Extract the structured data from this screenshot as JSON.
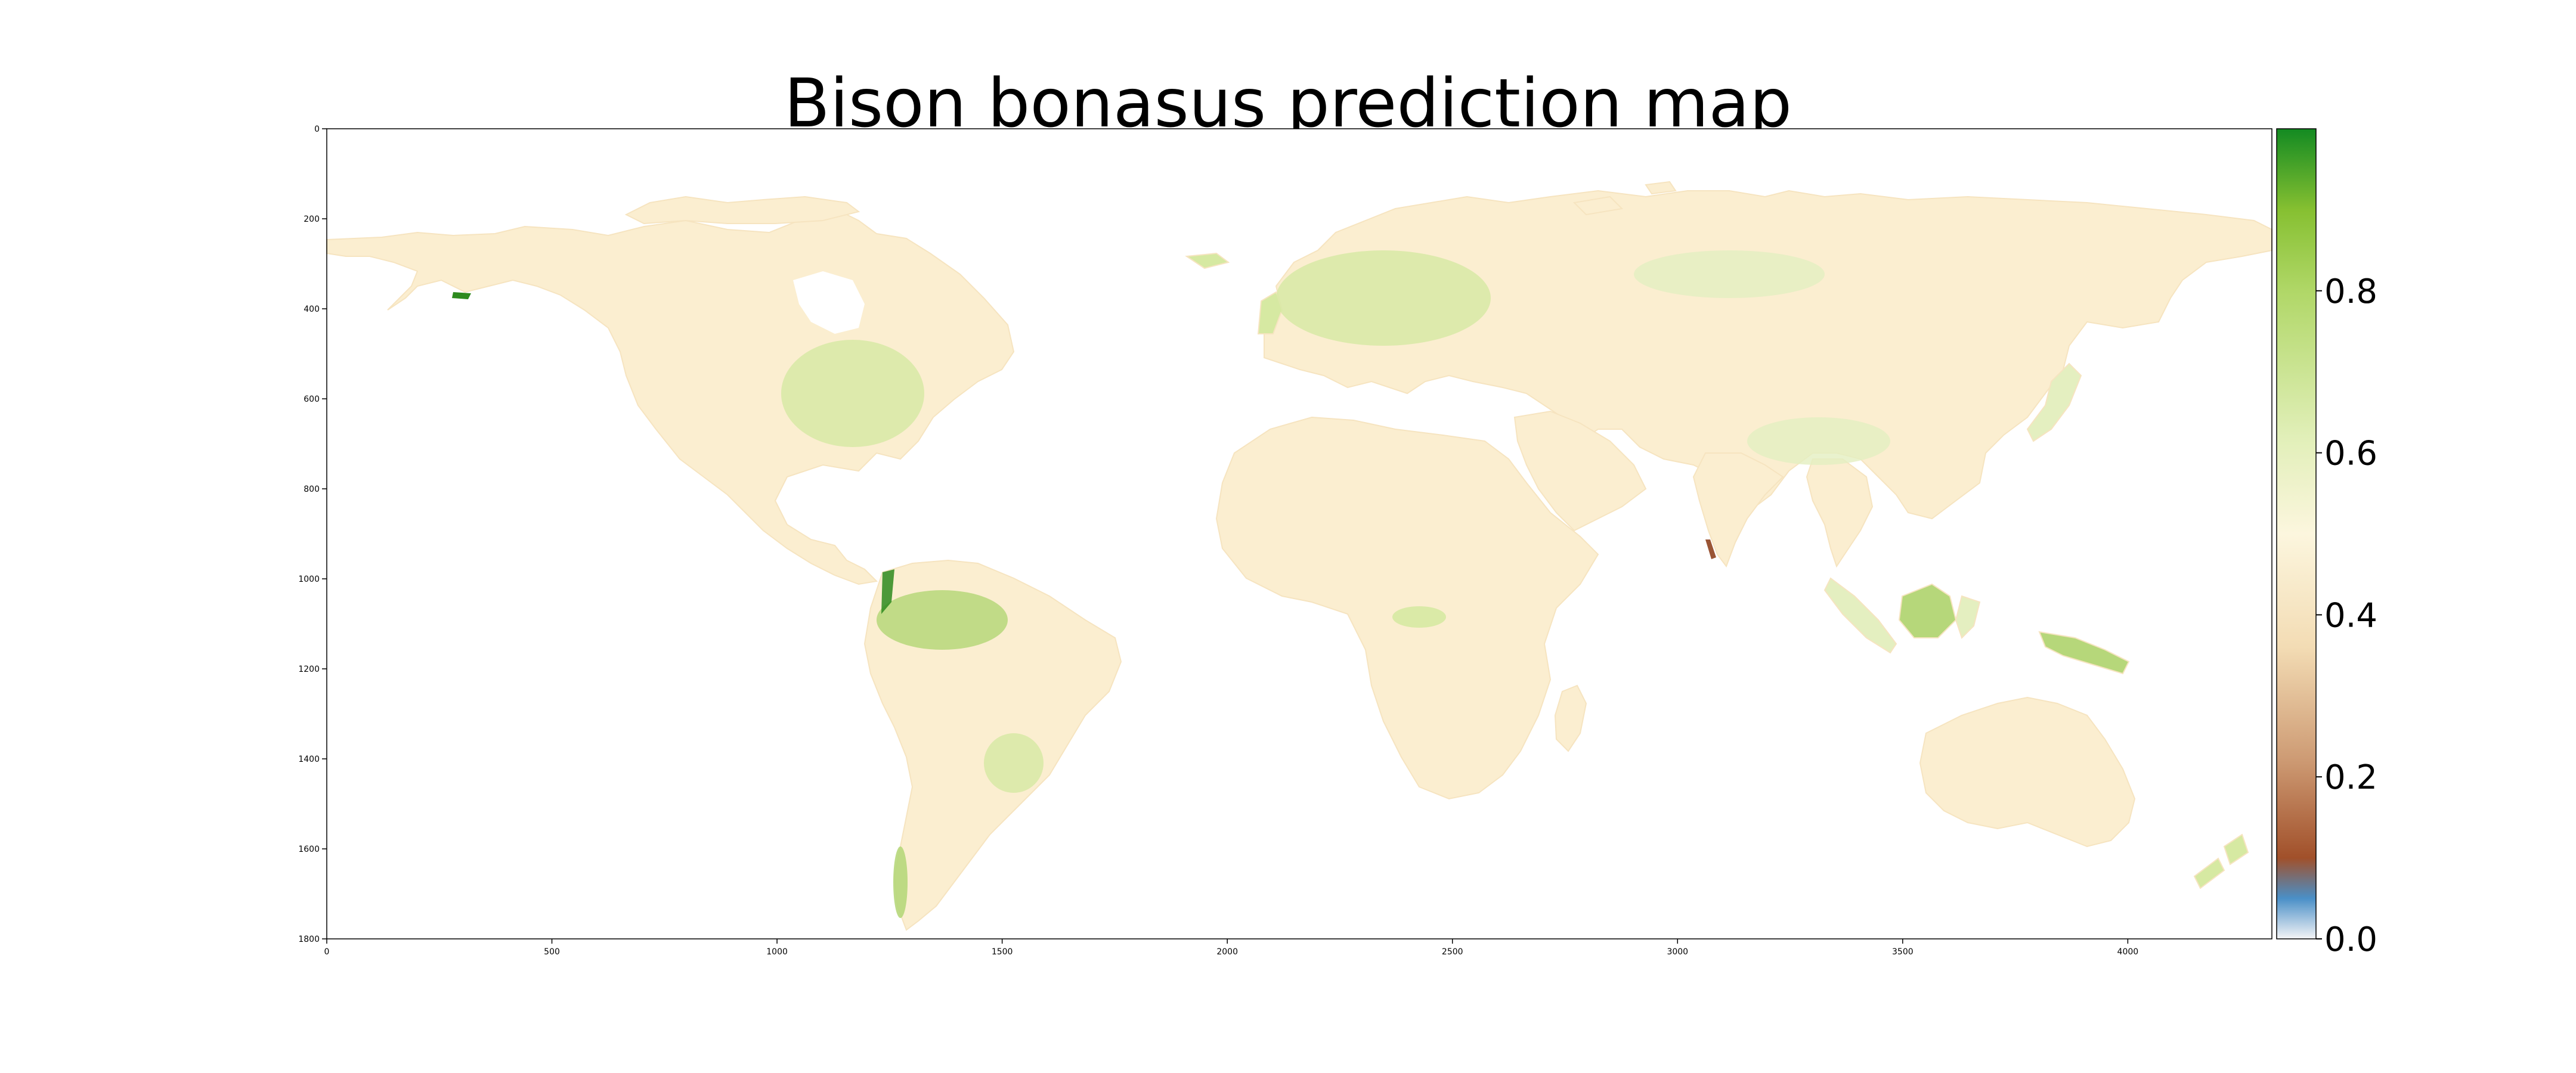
{
  "title": "Bison bonasus prediction map",
  "x_ticks": [
    "0",
    "500",
    "1000",
    "1500",
    "2000",
    "2500",
    "3000",
    "3500",
    "4000"
  ],
  "y_ticks": [
    "0",
    "200",
    "400",
    "600",
    "800",
    "1000",
    "1200",
    "1400",
    "1600",
    "1800"
  ],
  "colorbar_ticks": [
    "0.0",
    "0.2",
    "0.4",
    "0.6",
    "0.8"
  ],
  "colormap": {
    "stops": [
      {
        "value": 0.0,
        "color": "#f4f4f6"
      },
      {
        "value": 0.05,
        "color": "#4a8fc7"
      },
      {
        "value": 0.1,
        "color": "#a1502a"
      },
      {
        "value": 0.22,
        "color": "#cd9a73"
      },
      {
        "value": 0.36,
        "color": "#f3dcb4"
      },
      {
        "value": 0.5,
        "color": "#fcf6de"
      },
      {
        "value": 0.62,
        "color": "#e1efb8"
      },
      {
        "value": 0.8,
        "color": "#b0d767"
      },
      {
        "value": 0.9,
        "color": "#86c031"
      },
      {
        "value": 1.0,
        "color": "#138a22"
      }
    ]
  },
  "colors": {
    "land_base": "#fbeed0",
    "mid_green": "#d6e9a2",
    "green": "#b6d77a",
    "dark_green": "#2d8a1e",
    "brown": "#9a5535"
  },
  "chart_data": {
    "type": "heatmap",
    "title": "Bison bonasus prediction map",
    "x_range": [
      0,
      4320
    ],
    "y_range": [
      0,
      1800
    ],
    "y_axis_inverted": true,
    "value_range": [
      0.0,
      1.0
    ],
    "colorbar_ticks": [
      0.0,
      0.2,
      0.4,
      0.6,
      0.8
    ],
    "dominant_land_value": 0.38,
    "higher_value_regions": [
      {
        "region": "Amazon basin",
        "approx_value": 0.65
      },
      {
        "region": "Eastern North America",
        "approx_value": 0.58
      },
      {
        "region": "Northern and central Europe",
        "approx_value": 0.6
      },
      {
        "region": "Borneo",
        "approx_value": 0.7
      },
      {
        "region": "New Guinea",
        "approx_value": 0.72
      },
      {
        "region": "Colombian Andes",
        "approx_value": 0.8
      },
      {
        "region": "Alaska peak",
        "approx_value": 0.95
      }
    ],
    "lower_value_regions": [
      {
        "region": "Western Ghats, India",
        "approx_value": 0.15
      },
      {
        "region": "Sahara",
        "approx_value": 0.33
      }
    ]
  }
}
